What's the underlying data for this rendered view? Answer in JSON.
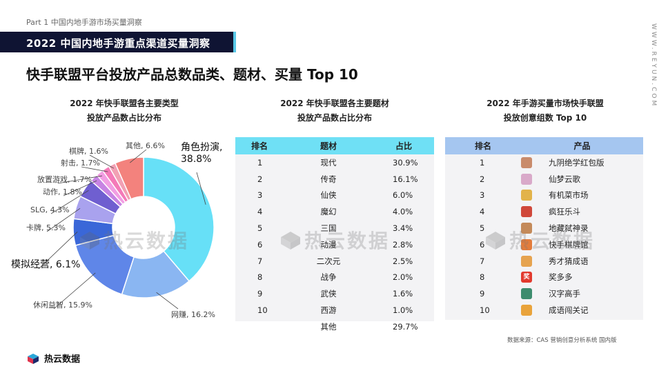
{
  "header": {
    "part_label": "Part 1  中国内地手游市场买量洞察",
    "section_title": "2022 中国内地手游重点渠道买量洞察",
    "page_title": "快手联盟平台投放产品总数品类、题材、买量 Top 10",
    "side_watermark": "WWW.REYUN.COM"
  },
  "donut": {
    "title_line1": "2022 年快手联盟各主要类型",
    "title_line2": "投放产品数占比分布"
  },
  "chart_data": [
    {
      "type": "pie",
      "variant": "donut",
      "categories": [
        "角色扮演",
        "网赚",
        "休闲益智",
        "模拟经营",
        "卡牌",
        "SLG",
        "动作",
        "放置游戏",
        "射击",
        "棋牌",
        "其他"
      ],
      "values": [
        38.8,
        16.2,
        15.9,
        6.1,
        5.3,
        4.3,
        1.8,
        1.7,
        1.7,
        1.6,
        6.6
      ],
      "labels": [
        "角色扮演,\n38.8%",
        "网赚, 16.2%",
        "休闲益智, 15.9%",
        "模拟经营, 6.1%",
        "卡牌, 5.3%",
        "SLG, 4.3%",
        "动作, 1.8%",
        "放置游戏, 1.7%",
        "射击, 1.7%",
        "棋牌, 1.6%",
        "其他, 6.6%"
      ],
      "colors": [
        "#67e0f7",
        "#8ab6f2",
        "#5f86e8",
        "#3a67d8",
        "#a9a2ee",
        "#6f5fd0",
        "#c783e3",
        "#f29ee3",
        "#f47ab8",
        "#f2a0b4",
        "#f3827d"
      ]
    }
  ],
  "table1": {
    "title_line1": "2022 年快手联盟各主要题材",
    "title_line2": "投放产品数占比分布",
    "headers": [
      "排名",
      "题材",
      "占比"
    ],
    "rows": [
      [
        "1",
        "现代",
        "30.9%"
      ],
      [
        "2",
        "传奇",
        "16.1%"
      ],
      [
        "3",
        "仙侠",
        "6.0%"
      ],
      [
        "4",
        "魔幻",
        "4.0%"
      ],
      [
        "5",
        "三国",
        "3.4%"
      ],
      [
        "6",
        "动漫",
        "2.8%"
      ],
      [
        "7",
        "二次元",
        "2.5%"
      ],
      [
        "8",
        "战争",
        "2.0%"
      ],
      [
        "9",
        "武侠",
        "1.6%"
      ],
      [
        "10",
        "西游",
        "1.0%"
      ],
      [
        "",
        "其他",
        "29.7%"
      ]
    ]
  },
  "table2": {
    "title_line1": "2022 年手游买量市场快手联盟",
    "title_line2": "投放创意组数 Top 10",
    "headers": [
      "排名",
      "产品"
    ],
    "rows": [
      {
        "rank": "1",
        "product": "九阴绝学红包版",
        "icon_color": "#c98b6b",
        "icon": "game-icon"
      },
      {
        "rank": "2",
        "product": "仙梦云歌",
        "icon_color": "#d9a9c9",
        "icon": "game-icon"
      },
      {
        "rank": "3",
        "product": "有机菜市场",
        "icon_color": "#e2b34a",
        "icon": "game-icon"
      },
      {
        "rank": "4",
        "product": "疯狂乐斗",
        "icon_color": "#d0483a",
        "icon": "game-icon"
      },
      {
        "rank": "5",
        "product": "地藏弑神录",
        "icon_color": "#c48a5a",
        "icon": "game-icon"
      },
      {
        "rank": "6",
        "product": "快手棋牌馆",
        "icon_color": "#e37c3c",
        "icon": "game-icon"
      },
      {
        "rank": "7",
        "product": "秀才猜成语",
        "icon_color": "#e6a34f",
        "icon": "game-icon"
      },
      {
        "rank": "8",
        "product": "奖多多",
        "icon_color": "#e23a2e",
        "icon": "game-icon",
        "icon_text": "奖"
      },
      {
        "rank": "9",
        "product": "汉字高手",
        "icon_color": "#3d8c6e",
        "icon": "game-icon"
      },
      {
        "rank": "10",
        "product": "成语闯关记",
        "icon_color": "#e9a33b",
        "icon": "game-icon"
      }
    ]
  },
  "watermark": {
    "text": "热云数据"
  },
  "footer": {
    "source_note": "数据来源：CAS 营销创意分析系统 国内版",
    "logo_text": "热云数据"
  },
  "colors": {
    "banner_bg": "#0f1433",
    "accent": "#58c7e6",
    "table1_header": "#6fe0f5",
    "table2_header": "#a5c6f0",
    "table_body": "#f3f3f5"
  }
}
